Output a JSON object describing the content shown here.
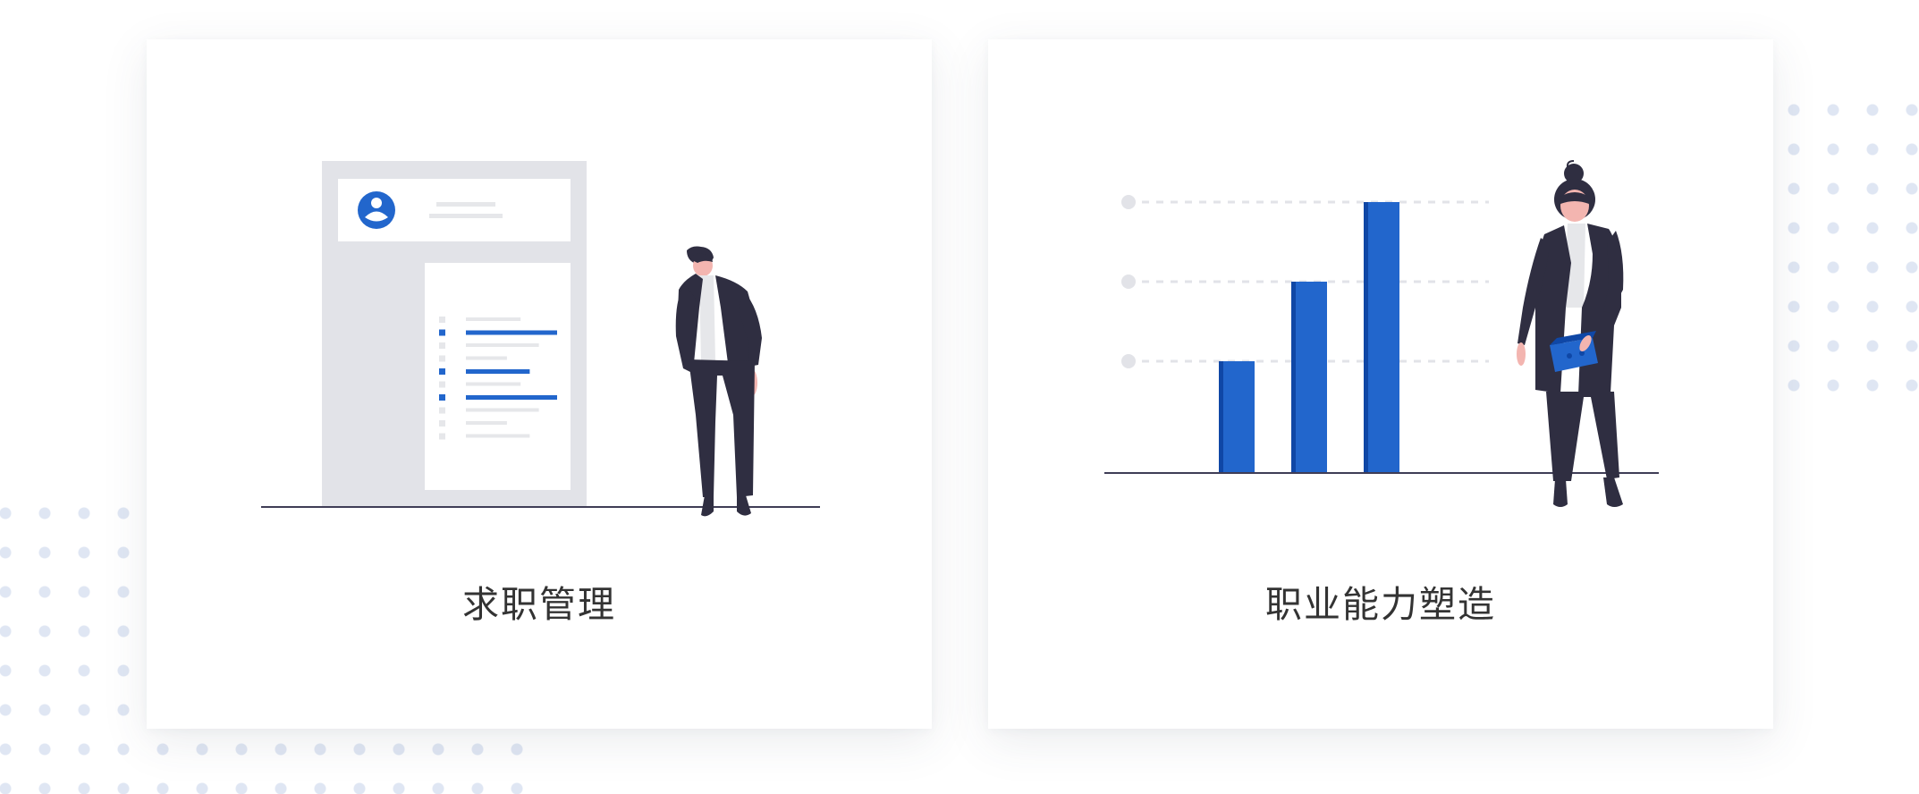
{
  "cards": [
    {
      "title": "求职管理",
      "illustration_icon": "resume-document-illustration",
      "resume_rows": [
        {
          "highlight": false,
          "length": 0.6
        },
        {
          "highlight": true,
          "length": 1.0
        },
        {
          "highlight": false,
          "length": 0.8
        },
        {
          "highlight": false,
          "length": 0.45
        },
        {
          "highlight": true,
          "length": 0.7
        },
        {
          "highlight": false,
          "length": 0.6
        },
        {
          "highlight": true,
          "length": 1.0
        },
        {
          "highlight": false,
          "length": 0.8
        },
        {
          "highlight": false,
          "length": 0.45
        },
        {
          "highlight": false,
          "length": 0.7
        }
      ]
    },
    {
      "title": "职业能力塑造",
      "illustration_icon": "growth-bar-chart-illustration",
      "bar_levels": [
        1,
        2,
        3
      ]
    }
  ],
  "colors": {
    "accent": "#2266cc",
    "accent_dark": "#0f47a6",
    "panel_gray": "#e2e3e8",
    "line_gray": "#e6e7ea",
    "ink": "#2f2e41",
    "skin": "#f3b5b0",
    "text": "#333333",
    "dot": "#dfe6f3"
  }
}
